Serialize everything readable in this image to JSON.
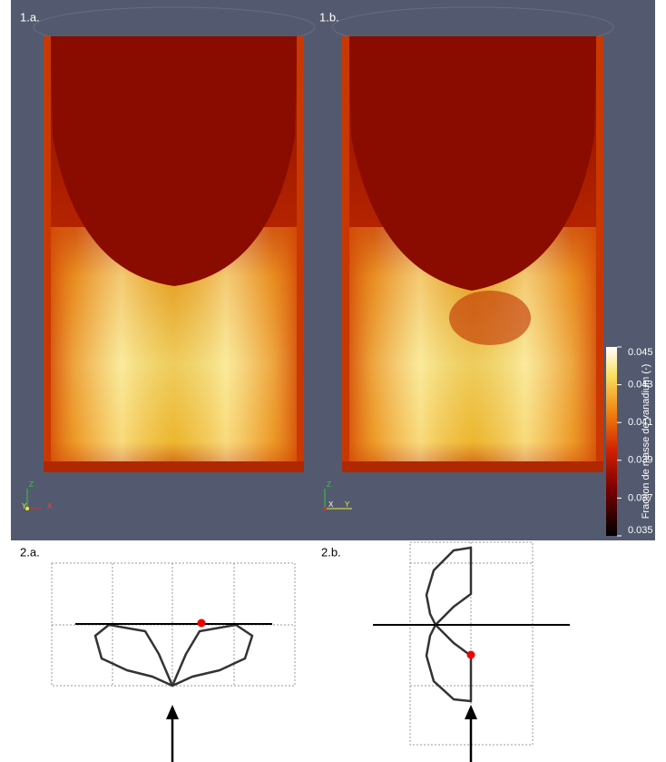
{
  "panels": [
    {
      "label": "1.a.",
      "axes": [
        "Z",
        "Y",
        "X"
      ]
    },
    {
      "label": "1.b.",
      "axes": [
        "Z",
        "X",
        "Y"
      ]
    }
  ],
  "colorbar": {
    "title": "Fraction de masse de vanadium (-)",
    "range": [
      0.035,
      0.045
    ],
    "ticks": [
      0.045,
      0.043,
      0.041,
      0.039,
      0.037,
      0.035
    ]
  },
  "diagrams": [
    {
      "label": "2.a."
    },
    {
      "label": "2.b."
    }
  ]
}
